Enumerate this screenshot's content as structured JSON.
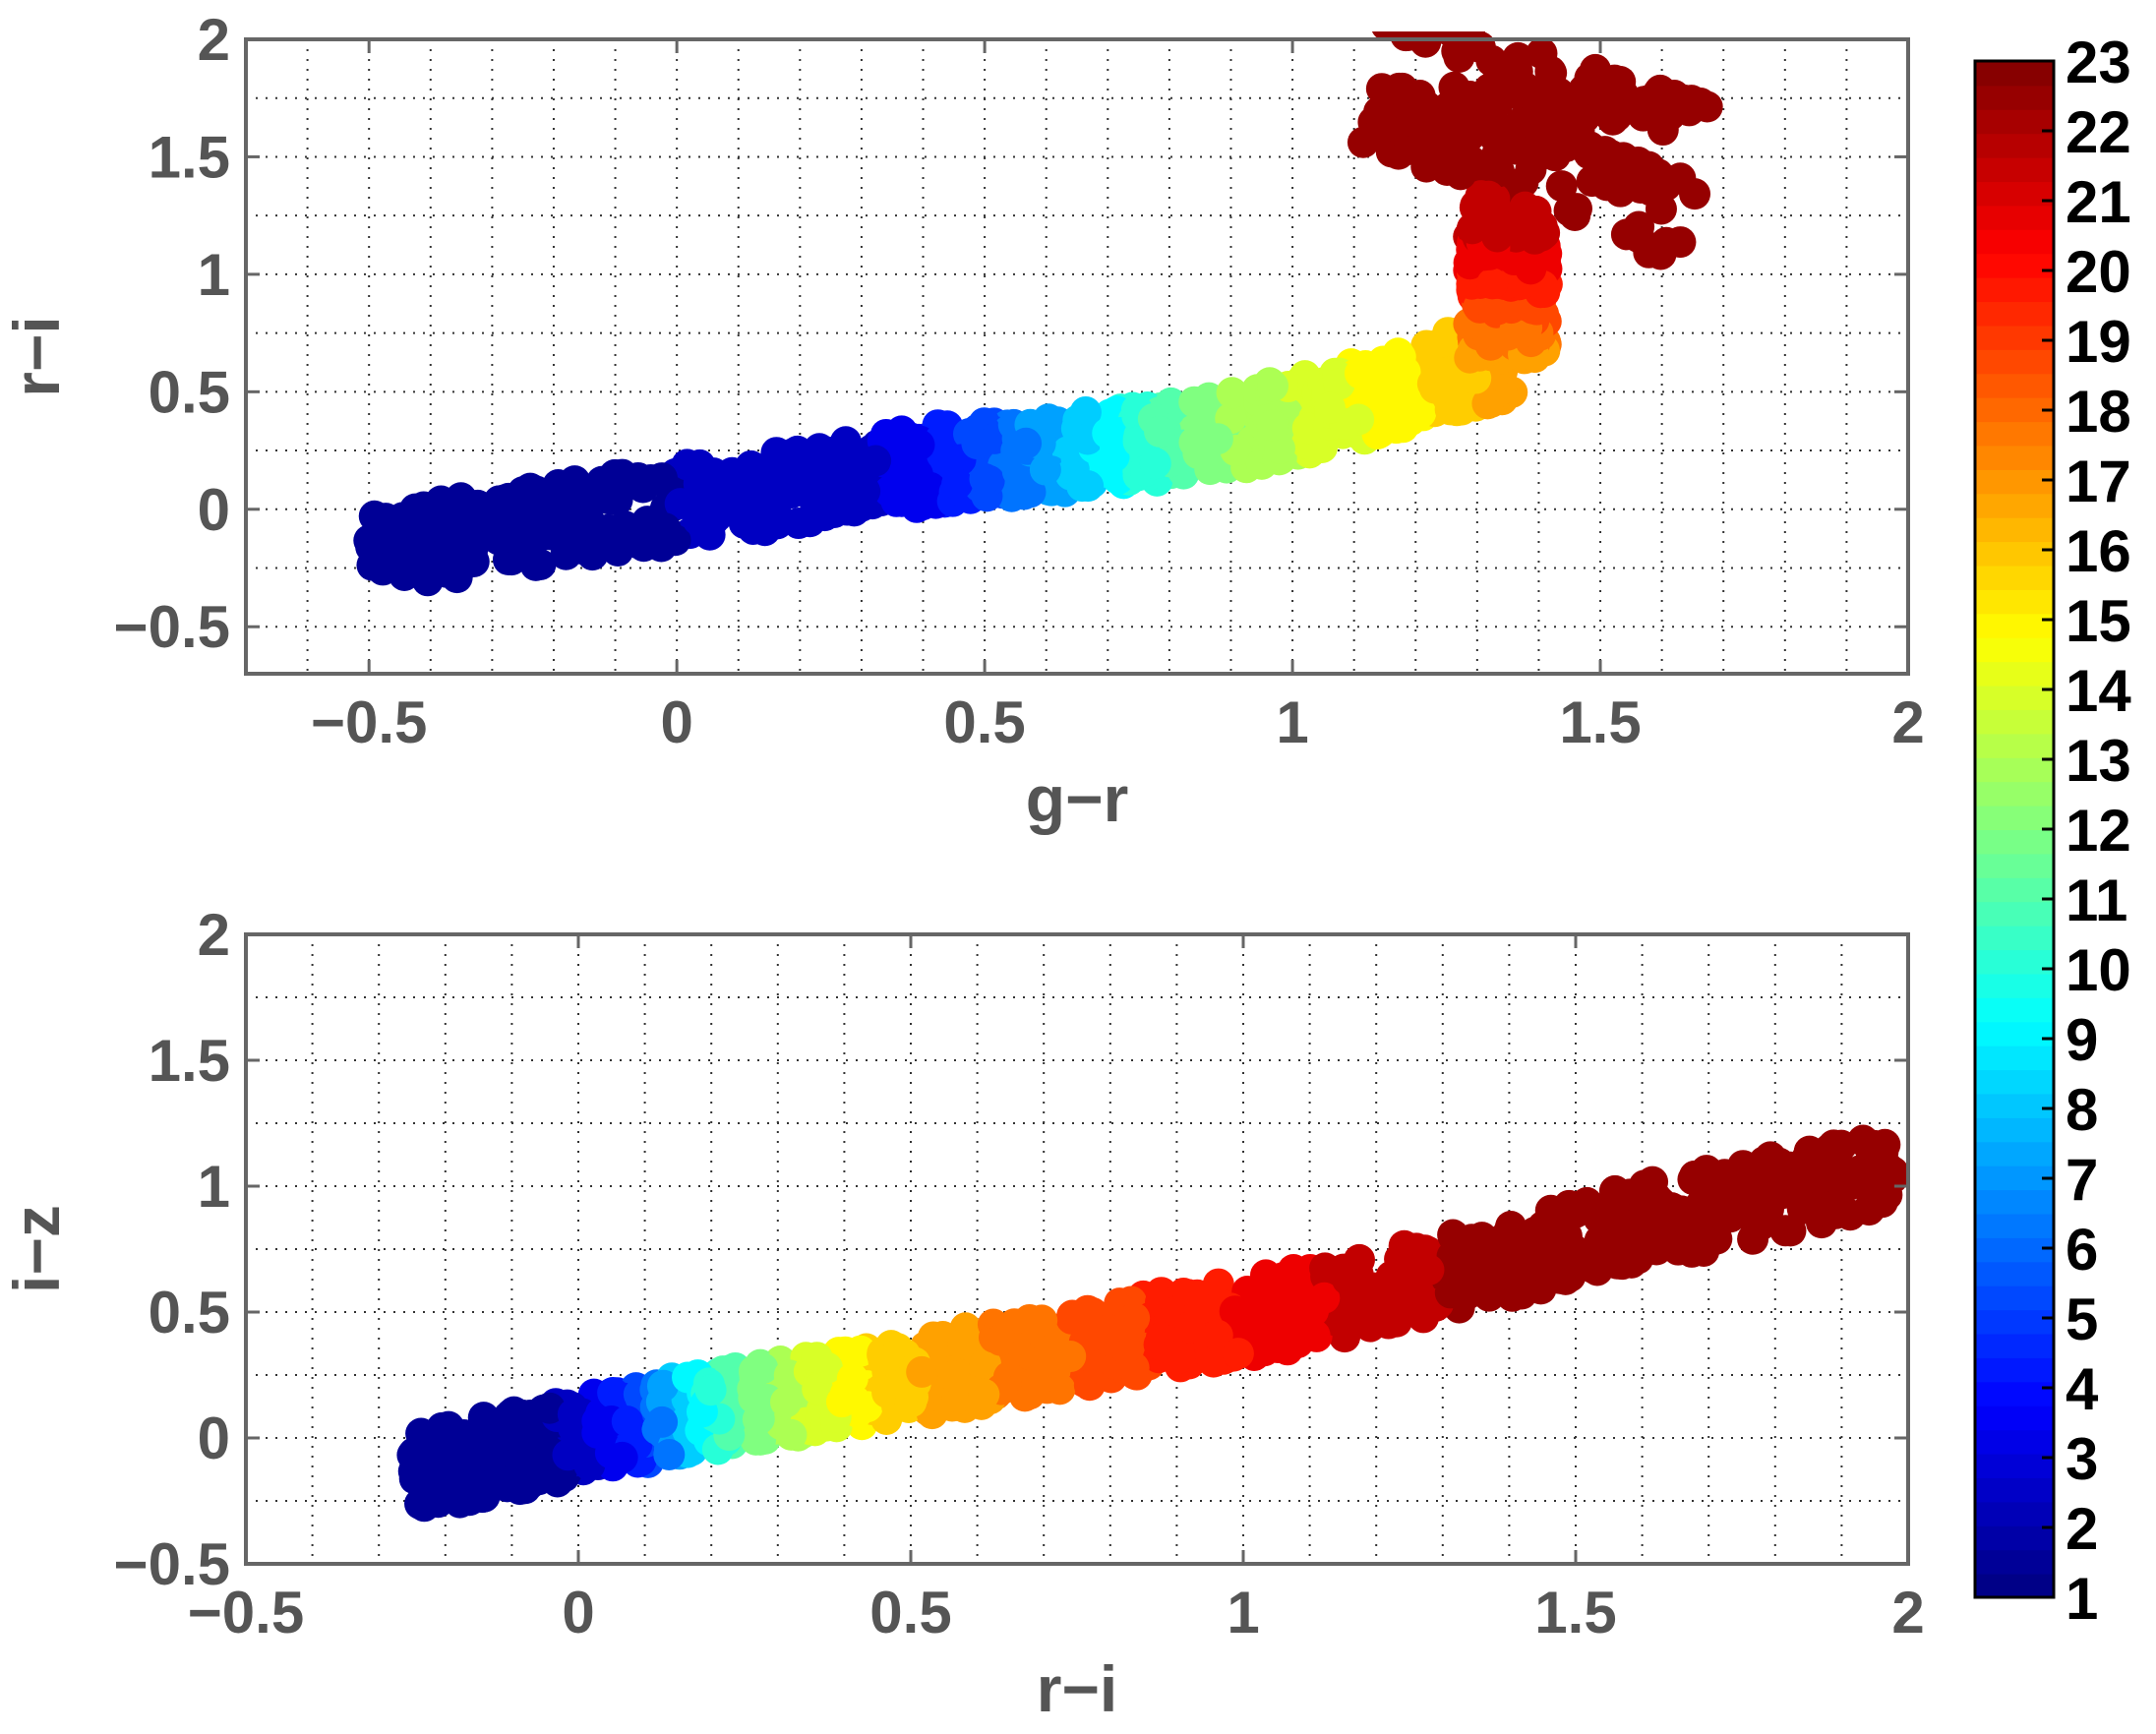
{
  "chart_data": [
    {
      "type": "scatter",
      "title": "",
      "xlabel": "g−r",
      "ylabel": "r−i",
      "xlim": [
        -0.7,
        2.0
      ],
      "ylim": [
        -0.7,
        2.0
      ],
      "xticks": [
        -0.5,
        0,
        0.5,
        1,
        1.5,
        2
      ],
      "xtick_labels": [
        "−0.5",
        "0",
        "0.5",
        "1",
        "1.5",
        "2"
      ],
      "yticks": [
        -0.5,
        0,
        0.5,
        1,
        1.5,
        2
      ],
      "ytick_labels": [
        "−0.5",
        "0",
        "0.5",
        "1",
        "1.5",
        "2"
      ],
      "grid": true,
      "color_by": "colorbar index (1–23)",
      "track": [
        {
          "x": -0.5,
          "y": -0.18,
          "c": 1
        },
        {
          "x": -0.3,
          "y": -0.1,
          "c": 1
        },
        {
          "x": -0.1,
          "y": -0.02,
          "c": 1
        },
        {
          "x": 0.1,
          "y": 0.06,
          "c": 2
        },
        {
          "x": 0.3,
          "y": 0.14,
          "c": 2
        },
        {
          "x": 0.45,
          "y": 0.2,
          "c": 4
        },
        {
          "x": 0.55,
          "y": 0.22,
          "c": 6
        },
        {
          "x": 0.65,
          "y": 0.25,
          "c": 8
        },
        {
          "x": 0.75,
          "y": 0.28,
          "c": 10
        },
        {
          "x": 0.85,
          "y": 0.31,
          "c": 12
        },
        {
          "x": 0.95,
          "y": 0.36,
          "c": 13
        },
        {
          "x": 1.05,
          "y": 0.42,
          "c": 14
        },
        {
          "x": 1.15,
          "y": 0.5,
          "c": 15
        },
        {
          "x": 1.25,
          "y": 0.58,
          "c": 16
        },
        {
          "x": 1.35,
          "y": 0.64,
          "c": 17
        },
        {
          "x": 1.35,
          "y": 0.74,
          "c": 18
        },
        {
          "x": 1.35,
          "y": 0.85,
          "c": 19
        },
        {
          "x": 1.35,
          "y": 0.95,
          "c": 20
        },
        {
          "x": 1.35,
          "y": 1.08,
          "c": 21
        },
        {
          "x": 1.35,
          "y": 1.2,
          "c": 22
        },
        {
          "x": 1.38,
          "y": 1.4,
          "c": 23
        },
        {
          "x": 1.4,
          "y": 1.6,
          "c": 23
        },
        {
          "x": 1.4,
          "y": 1.8,
          "c": 23
        },
        {
          "x": 1.42,
          "y": 1.95,
          "c": 23
        }
      ]
    },
    {
      "type": "scatter",
      "title": "",
      "xlabel": "r−i",
      "ylabel": "i−z",
      "xlim": [
        -0.5,
        2.0
      ],
      "ylim": [
        -0.5,
        2.0
      ],
      "xticks": [
        -0.5,
        0,
        0.5,
        1,
        1.5,
        2
      ],
      "xtick_labels": [
        "−0.5",
        "0",
        "0.5",
        "1",
        "1.5",
        "2"
      ],
      "yticks": [
        -0.5,
        0,
        0.5,
        1,
        1.5,
        2
      ],
      "ytick_labels": [
        "−0.5",
        "0",
        "0.5",
        "1",
        "1.5",
        "2"
      ],
      "grid": true,
      "color_by": "colorbar index (1–23)",
      "track": [
        {
          "x": -0.25,
          "y": -0.14,
          "c": 1
        },
        {
          "x": -0.15,
          "y": -0.08,
          "c": 1
        },
        {
          "x": -0.05,
          "y": -0.03,
          "c": 1
        },
        {
          "x": 0.05,
          "y": 0.03,
          "c": 3
        },
        {
          "x": 0.12,
          "y": 0.07,
          "c": 6
        },
        {
          "x": 0.18,
          "y": 0.1,
          "c": 9
        },
        {
          "x": 0.26,
          "y": 0.13,
          "c": 12
        },
        {
          "x": 0.36,
          "y": 0.17,
          "c": 14
        },
        {
          "x": 0.46,
          "y": 0.22,
          "c": 16
        },
        {
          "x": 0.56,
          "y": 0.27,
          "c": 17
        },
        {
          "x": 0.68,
          "y": 0.32,
          "c": 18
        },
        {
          "x": 0.8,
          "y": 0.38,
          "c": 19
        },
        {
          "x": 0.92,
          "y": 0.44,
          "c": 20
        },
        {
          "x": 1.05,
          "y": 0.5,
          "c": 21
        },
        {
          "x": 1.2,
          "y": 0.58,
          "c": 22
        },
        {
          "x": 1.4,
          "y": 0.72,
          "c": 23
        },
        {
          "x": 1.6,
          "y": 0.85,
          "c": 23
        },
        {
          "x": 1.8,
          "y": 0.96,
          "c": 23
        },
        {
          "x": 1.98,
          "y": 1.07,
          "c": 23
        }
      ]
    }
  ],
  "colorbar": {
    "min": 1,
    "max": 23,
    "labels": [
      "1",
      "2",
      "3",
      "4",
      "5",
      "6",
      "7",
      "8",
      "9",
      "10",
      "11",
      "12",
      "13",
      "14",
      "15",
      "16",
      "17",
      "18",
      "19",
      "20",
      "21",
      "22",
      "23"
    ],
    "colormap": "jet"
  }
}
